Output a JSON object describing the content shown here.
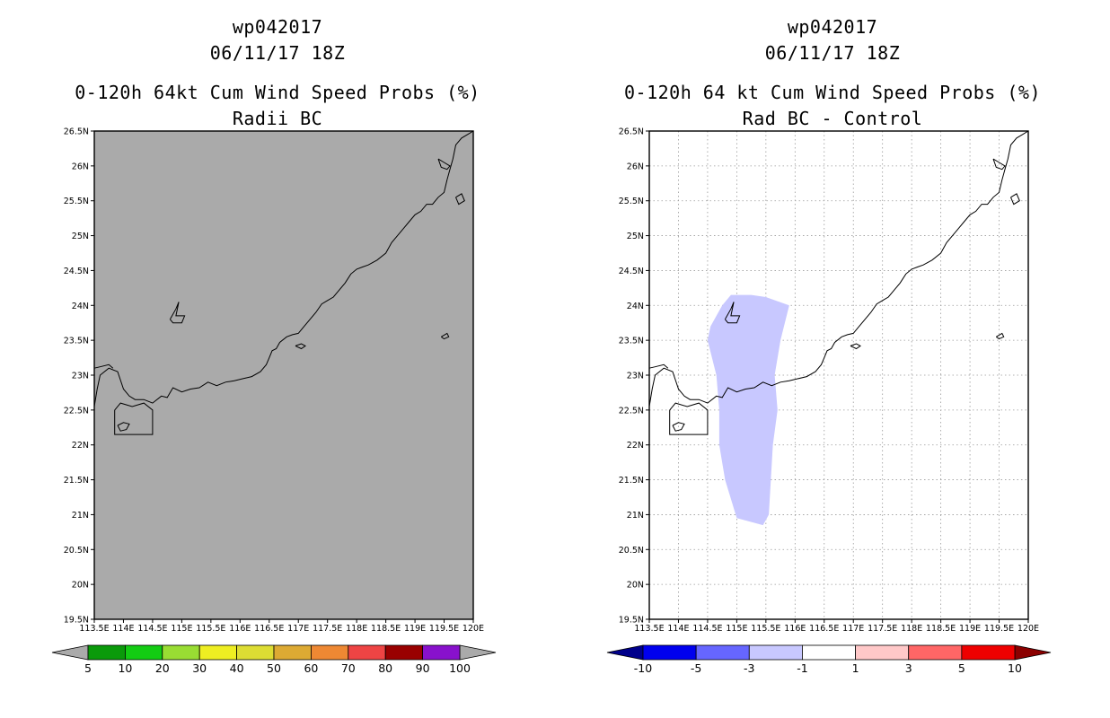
{
  "left": {
    "title_line1": "wp042017",
    "title_line2": "06/11/17 18Z",
    "title_line3": "0-120h 64kt Cum Wind Speed Probs (%)",
    "title_line4": "Radii BC",
    "background_fill": "#aaaaaa",
    "colorbar": {
      "colors": [
        "#0a9a0a",
        "#13cc13",
        "#99dd33",
        "#eeee22",
        "#dddd33",
        "#ddaa33",
        "#ee8833",
        "#ee4444",
        "#990000",
        "#8811cc"
      ],
      "end_colors": [
        "#aaaaaa",
        "#aaaaaa"
      ],
      "labels": [
        "5",
        "10",
        "20",
        "30",
        "40",
        "50",
        "60",
        "70",
        "80",
        "90",
        "100"
      ]
    }
  },
  "right": {
    "title_line1": "wp042017",
    "title_line2": "06/11/17 18Z",
    "title_line3": "0-120h 64 kt Cum Wind Speed Probs (%)",
    "title_line4": "Rad BC - Control",
    "background_fill": "#ffffff",
    "difference_region": {
      "color": "#c8c8ff",
      "range": "-3 to -1"
    },
    "colorbar": {
      "colors": [
        "#0000ee",
        "#6666ff",
        "#c8c8ff",
        "#ffffff",
        "#ffc8c8",
        "#ff6666",
        "#ee0000"
      ],
      "end_colors": [
        "#00008b",
        "#8b0000"
      ],
      "labels": [
        "-10",
        "-5",
        "-3",
        "-1",
        "1",
        "3",
        "5",
        "10"
      ]
    }
  },
  "axes": {
    "lon_labels": [
      "113.5E",
      "114E",
      "114.5E",
      "115E",
      "115.5E",
      "116E",
      "116.5E",
      "117E",
      "117.5E",
      "118E",
      "118.5E",
      "119E",
      "119.5E",
      "120E"
    ],
    "lat_labels": [
      "19.5N",
      "20N",
      "20.5N",
      "21N",
      "21.5N",
      "22N",
      "22.5N",
      "23N",
      "23.5N",
      "24N",
      "24.5N",
      "25N",
      "25.5N",
      "26N",
      "26.5N"
    ],
    "lon_range": [
      113.5,
      120.0
    ],
    "lat_range": [
      19.5,
      26.5
    ]
  },
  "coastline": {
    "mainland": [
      [
        113.5,
        22.55
      ],
      [
        113.55,
        22.8
      ],
      [
        113.6,
        23.0
      ],
      [
        113.75,
        23.1
      ],
      [
        113.9,
        23.05
      ],
      [
        114.0,
        22.8
      ],
      [
        114.1,
        22.7
      ],
      [
        114.2,
        22.65
      ],
      [
        114.35,
        22.65
      ],
      [
        114.5,
        22.6
      ],
      [
        114.65,
        22.7
      ],
      [
        114.75,
        22.68
      ],
      [
        114.85,
        22.82
      ],
      [
        115.0,
        22.76
      ],
      [
        115.15,
        22.8
      ],
      [
        115.3,
        22.82
      ],
      [
        115.45,
        22.9
      ],
      [
        115.6,
        22.85
      ],
      [
        115.75,
        22.9
      ],
      [
        115.9,
        22.92
      ],
      [
        116.05,
        22.95
      ],
      [
        116.2,
        22.98
      ],
      [
        116.35,
        23.05
      ],
      [
        116.45,
        23.15
      ],
      [
        116.5,
        23.25
      ],
      [
        116.55,
        23.35
      ],
      [
        116.62,
        23.38
      ],
      [
        116.68,
        23.47
      ],
      [
        116.8,
        23.55
      ],
      [
        116.9,
        23.58
      ],
      [
        117.0,
        23.6
      ],
      [
        117.1,
        23.7
      ],
      [
        117.2,
        23.8
      ],
      [
        117.3,
        23.9
      ],
      [
        117.4,
        24.02
      ],
      [
        117.5,
        24.07
      ],
      [
        117.6,
        24.12
      ],
      [
        117.7,
        24.22
      ],
      [
        117.8,
        24.32
      ],
      [
        117.9,
        24.45
      ],
      [
        118.0,
        24.52
      ],
      [
        118.1,
        24.55
      ],
      [
        118.2,
        24.58
      ],
      [
        118.35,
        24.65
      ],
      [
        118.5,
        24.75
      ],
      [
        118.6,
        24.9
      ],
      [
        118.7,
        25.0
      ],
      [
        118.8,
        25.1
      ],
      [
        118.9,
        25.2
      ],
      [
        119.0,
        25.3
      ],
      [
        119.1,
        25.35
      ],
      [
        119.2,
        25.45
      ],
      [
        119.3,
        25.45
      ],
      [
        119.4,
        25.55
      ],
      [
        119.5,
        25.62
      ],
      [
        119.55,
        25.8
      ],
      [
        119.6,
        25.95
      ],
      [
        119.65,
        26.1
      ],
      [
        119.7,
        26.3
      ],
      [
        119.8,
        26.4
      ],
      [
        119.9,
        26.45
      ],
      [
        120.0,
        26.5
      ]
    ],
    "hk_box": [
      [
        113.85,
        22.5
      ],
      [
        113.85,
        22.15
      ],
      [
        114.5,
        22.15
      ],
      [
        114.5,
        22.5
      ],
      [
        114.35,
        22.6
      ],
      [
        114.15,
        22.55
      ],
      [
        113.95,
        22.6
      ],
      [
        113.85,
        22.5
      ]
    ],
    "lantau": [
      [
        113.9,
        22.28
      ],
      [
        114.0,
        22.32
      ],
      [
        114.1,
        22.3
      ],
      [
        114.05,
        22.22
      ],
      [
        113.95,
        22.2
      ],
      [
        113.9,
        22.28
      ]
    ],
    "nanao": [
      [
        116.95,
        23.42
      ],
      [
        117.05,
        23.45
      ],
      [
        117.12,
        23.42
      ],
      [
        117.05,
        23.38
      ],
      [
        116.95,
        23.42
      ]
    ],
    "pingtan": [
      [
        119.7,
        25.55
      ],
      [
        119.8,
        25.6
      ],
      [
        119.85,
        25.5
      ],
      [
        119.75,
        25.45
      ],
      [
        119.7,
        25.55
      ]
    ],
    "fuzhou_bay": [
      [
        119.4,
        26.1
      ],
      [
        119.5,
        26.05
      ],
      [
        119.6,
        26.0
      ],
      [
        119.55,
        25.95
      ],
      [
        119.45,
        25.98
      ],
      [
        119.4,
        26.1
      ]
    ],
    "river_mouth": [
      [
        113.5,
        23.1
      ],
      [
        113.6,
        23.12
      ],
      [
        113.75,
        23.15
      ],
      [
        113.82,
        23.1
      ]
    ],
    "island_24n": [
      [
        114.8,
        23.8
      ],
      [
        114.9,
        23.95
      ],
      [
        114.95,
        24.05
      ],
      [
        114.9,
        23.85
      ],
      [
        115.05,
        23.85
      ],
      [
        115.0,
        23.75
      ],
      [
        114.85,
        23.75
      ],
      [
        114.8,
        23.8
      ]
    ],
    "island_235": [
      [
        119.45,
        23.55
      ],
      [
        119.55,
        23.6
      ],
      [
        119.58,
        23.55
      ],
      [
        119.5,
        23.52
      ],
      [
        119.45,
        23.55
      ]
    ]
  }
}
